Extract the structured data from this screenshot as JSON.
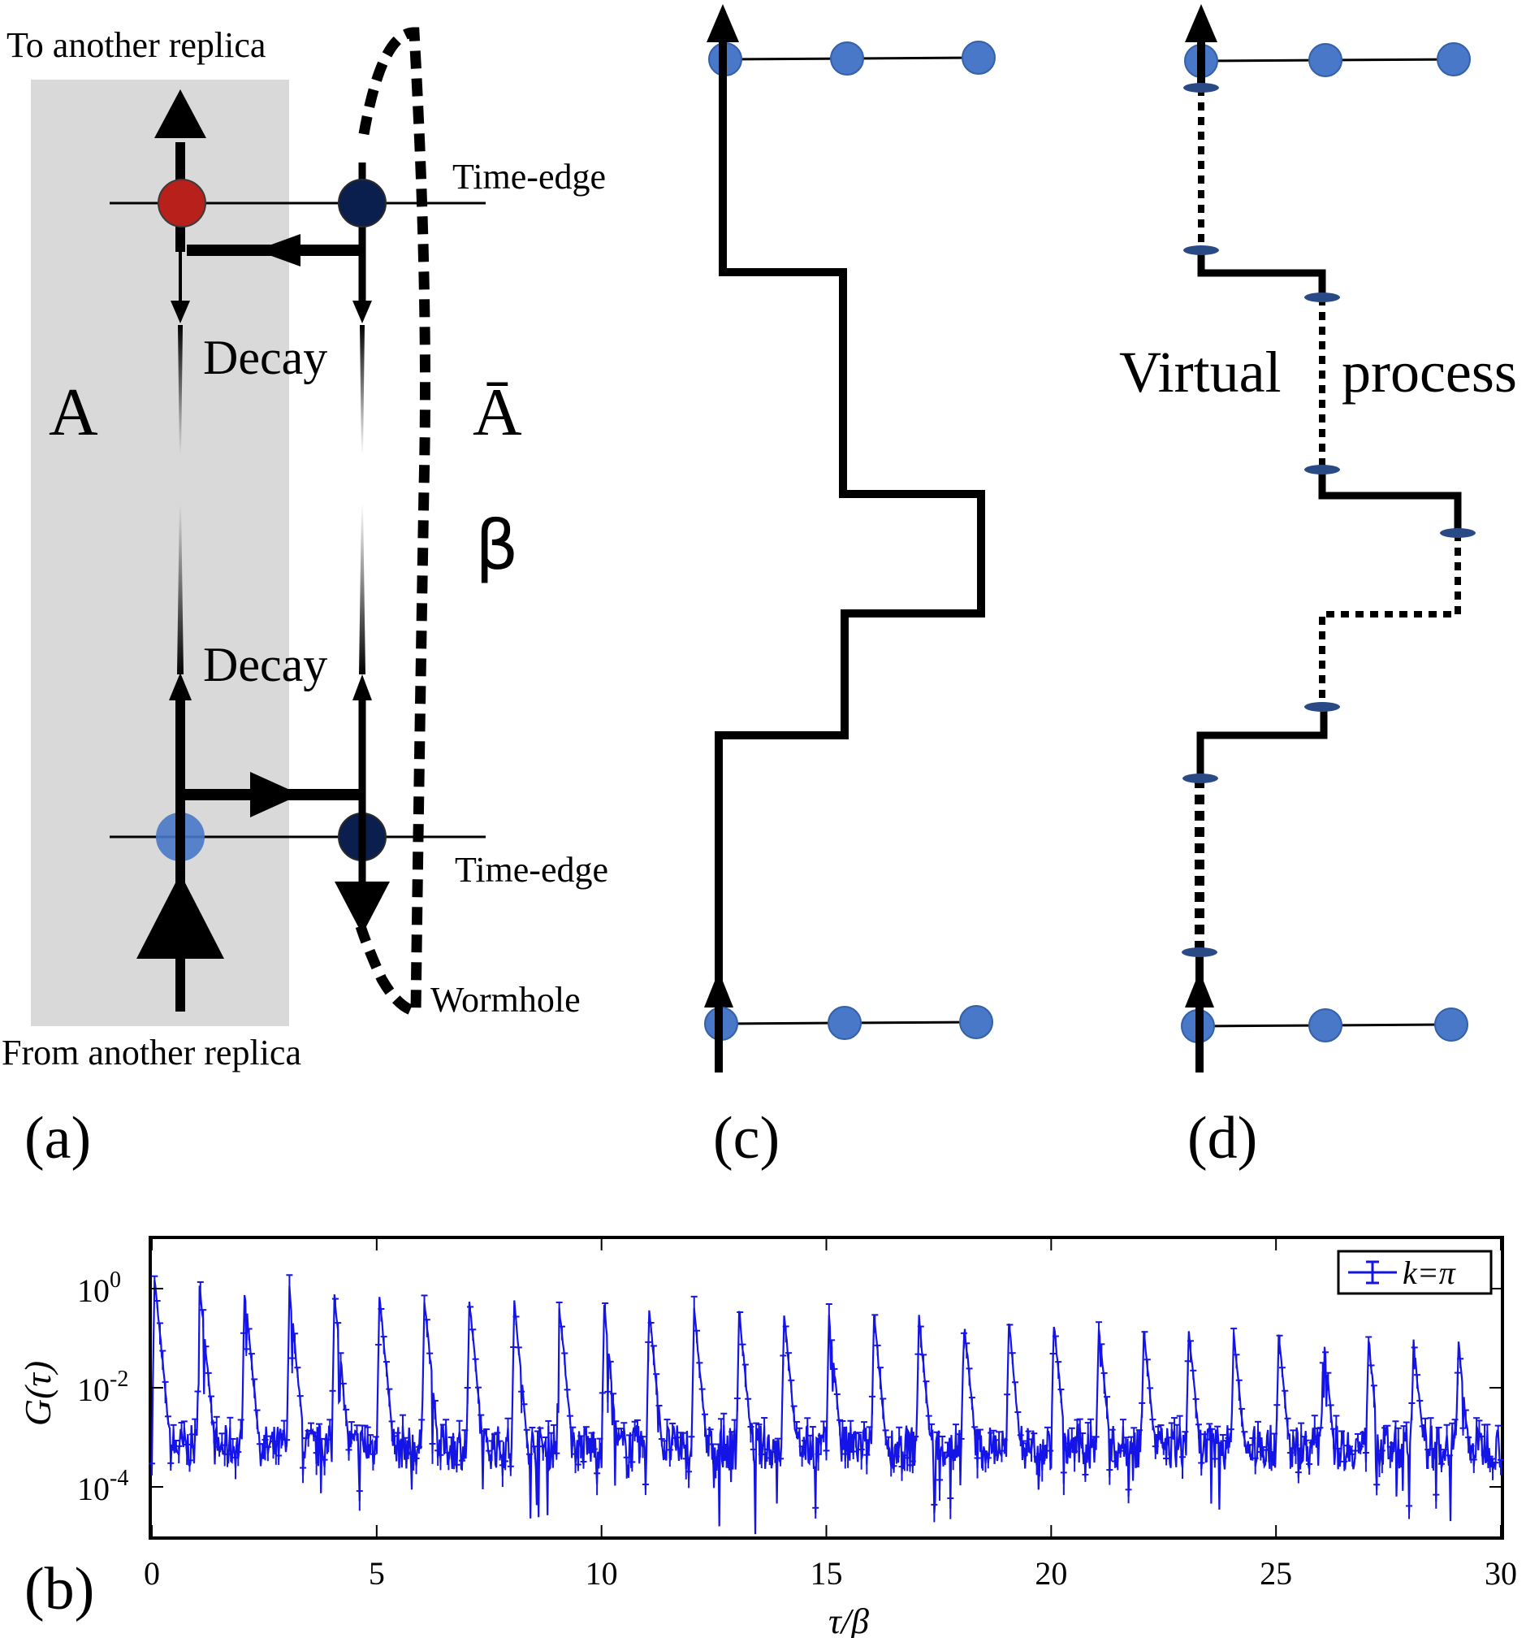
{
  "panel_a": {
    "label": "(a)",
    "top_text": "To another replica",
    "bottom_text": "From another replica",
    "region_left": "A",
    "region_right": "Ā",
    "beta": "β",
    "decay_upper": "Decay",
    "decay_lower": "Decay",
    "time_edge_upper": "Time-edge",
    "time_edge_lower": "Time-edge",
    "wormhole": "Wormhole",
    "colors": {
      "shaded": "#d9d9d9",
      "red_site": "#b8211b",
      "navy_site": "#0b1f4f",
      "blue_site": "#4a78c8"
    }
  },
  "panel_c": {
    "label": "(c)"
  },
  "panel_d": {
    "label": "(d)",
    "annotation_left": "Virtual",
    "annotation_right": "process"
  },
  "panel_b": {
    "label": "(b)",
    "xlabel": "τ/β",
    "ylabel": "G(τ)",
    "legend": "k=π",
    "x_ticks": [
      "0",
      "5",
      "10",
      "15",
      "20",
      "25",
      "30"
    ],
    "y_ticks": [
      "10",
      "10",
      "10"
    ],
    "y_exps": [
      "0",
      "-2",
      "-4"
    ],
    "chart_data": {
      "type": "scatter",
      "series": [
        {
          "name": "k=π",
          "color": "#1414e6"
        }
      ],
      "x_range": [
        0,
        30
      ],
      "y_range_log10": [
        -5,
        1
      ],
      "log_y": true,
      "peak_x": [
        0,
        1,
        2,
        3,
        4,
        5,
        6,
        7,
        8,
        9,
        10,
        11,
        12,
        13,
        14,
        15,
        16,
        17,
        18,
        19,
        20,
        21,
        22,
        23,
        24,
        25,
        26,
        27,
        28,
        29
      ],
      "peak_log10_y": [
        0.2,
        0.1,
        0.0,
        0.0,
        -0.1,
        -0.15,
        -0.2,
        -0.25,
        -0.3,
        -0.35,
        -0.35,
        -0.4,
        -0.45,
        -0.45,
        -0.5,
        -0.55,
        -0.55,
        -0.6,
        -0.65,
        -0.7,
        -0.7,
        -0.75,
        -0.8,
        -0.85,
        -0.9,
        -0.95,
        -0.95,
        -1.0,
        -1.05,
        -1.1
      ],
      "floor_log10_y": -3.2,
      "grid": false,
      "legend_position": "top-right"
    }
  }
}
